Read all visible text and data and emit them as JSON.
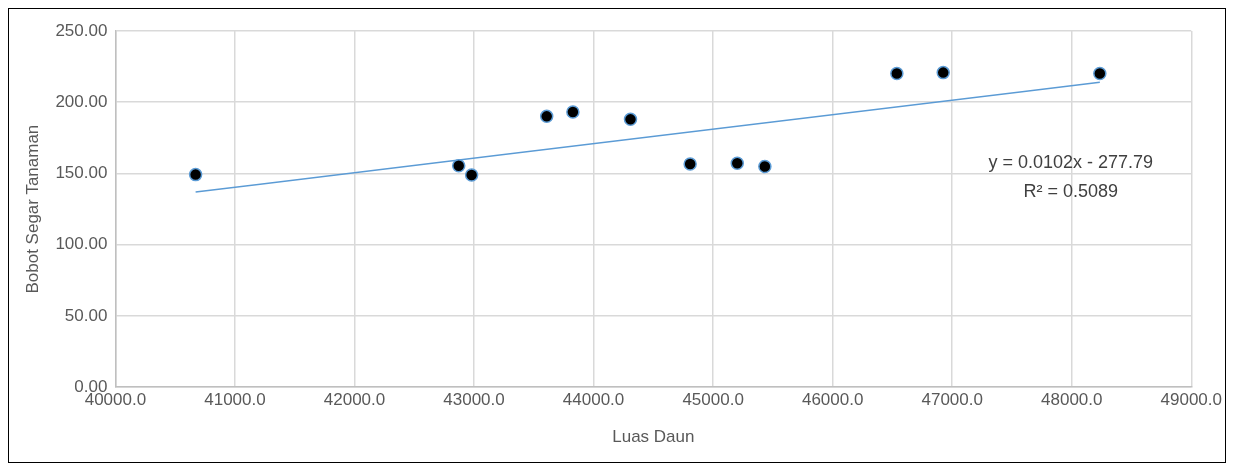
{
  "chart_data": {
    "type": "scatter",
    "xlabel": "Luas Daun",
    "ylabel": "Bobot Segar Tanaman",
    "series": [
      {
        "type": "scatter",
        "color": "#000000",
        "marker": "circle",
        "x": [
          40671,
          42872,
          42980,
          43608,
          43827,
          44309,
          44808,
          45202,
          45433,
          46537,
          46925,
          48235
        ],
        "values": [
          149.2,
          155.4,
          148.9,
          190.1,
          193.1,
          188.0,
          156.6,
          157.2,
          154.9,
          220.2,
          220.8,
          220.2
        ]
      },
      {
        "type": "line",
        "color": "#5b9bd5",
        "marker": "none",
        "line_style": "solid",
        "x": [
          40671,
          48235
        ],
        "values": [
          137,
          214
        ]
      }
    ],
    "xlim": [
      40000,
      49000
    ],
    "xticks": [
      {
        "value": 40000,
        "label": "40000.0"
      },
      {
        "value": 41000,
        "label": "41000.0"
      },
      {
        "value": 42000,
        "label": "42000.0"
      },
      {
        "value": 43000,
        "label": "43000.0"
      },
      {
        "value": 44000,
        "label": "44000.0"
      },
      {
        "value": 45000,
        "label": "45000.0"
      },
      {
        "value": 46000,
        "label": "46000.0"
      },
      {
        "value": 47000,
        "label": "47000.0"
      },
      {
        "value": 48000,
        "label": "48000.0"
      },
      {
        "value": 49000,
        "label": "49000.0"
      }
    ],
    "ylim": [
      0,
      250
    ],
    "yticks": [
      {
        "value": 0,
        "label": "0.00"
      },
      {
        "value": 50,
        "label": "50.00"
      },
      {
        "value": 100,
        "label": "100.00"
      },
      {
        "value": 150,
        "label": "150.00"
      },
      {
        "value": 200,
        "label": "200.00"
      },
      {
        "value": 250,
        "label": "250.00"
      }
    ],
    "grid": true,
    "legend": false,
    "annotations": [
      "y = 0.0102x - 277.79",
      "R² = 0.5089"
    ]
  }
}
